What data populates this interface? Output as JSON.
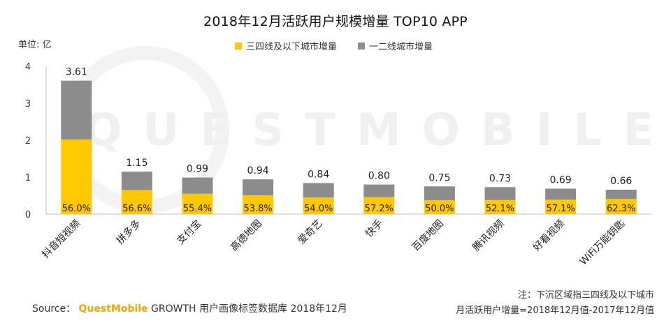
{
  "title": "2018年12月活跃用户规模增量 TOP10 APP",
  "unit_label": "单位: 亿",
  "watermark": "QUESTMOBILE",
  "legend": [
    {
      "label": "三四线及以下城市增量",
      "color": "#ffc800"
    },
    {
      "label": "一二线城市增量",
      "color": "#8c8c8c"
    }
  ],
  "chart_data": {
    "type": "bar",
    "stacked": true,
    "categories": [
      "抖音短视频",
      "拼多多",
      "支付宝",
      "高德地图",
      "爱奇艺",
      "快手",
      "百度地图",
      "腾讯视频",
      "好看视频",
      "WiFi万能钥匙"
    ],
    "totals": [
      3.61,
      1.15,
      0.99,
      0.94,
      0.84,
      0.8,
      0.75,
      0.73,
      0.69,
      0.66
    ],
    "total_labels": [
      "3.61",
      "1.15",
      "0.99",
      "0.94",
      "0.84",
      "0.80",
      "0.75",
      "0.73",
      "0.69",
      "0.66"
    ],
    "lower_tier_share_labels": [
      "56.0%",
      "56.6%",
      "55.4%",
      "53.8%",
      "54.0%",
      "57.2%",
      "50.0%",
      "52.1%",
      "57.1%",
      "62.3%"
    ],
    "series": [
      {
        "name": "三四线及以下城市增量",
        "values": [
          2.02,
          0.65,
          0.55,
          0.51,
          0.45,
          0.46,
          0.375,
          0.38,
          0.39,
          0.41
        ]
      },
      {
        "name": "一二线城市增量",
        "values": [
          1.59,
          0.5,
          0.44,
          0.43,
          0.39,
          0.34,
          0.375,
          0.35,
          0.3,
          0.25
        ]
      }
    ],
    "ylim": [
      0,
      4
    ],
    "yticks": [
      "0",
      "1",
      "2",
      "3",
      "4"
    ],
    "colors": {
      "lower": "#ffc800",
      "upper": "#8c8c8c"
    }
  },
  "notes": {
    "line1": "注：下沉区域指三四线及以下城市",
    "line2": "月活跃用户增量=2018年12月值-2017年12月值"
  },
  "source": {
    "prefix": "Source：",
    "brand": "QuestMobile",
    "rest": " GROWTH 用户画像标签数据库 2018年12月"
  }
}
